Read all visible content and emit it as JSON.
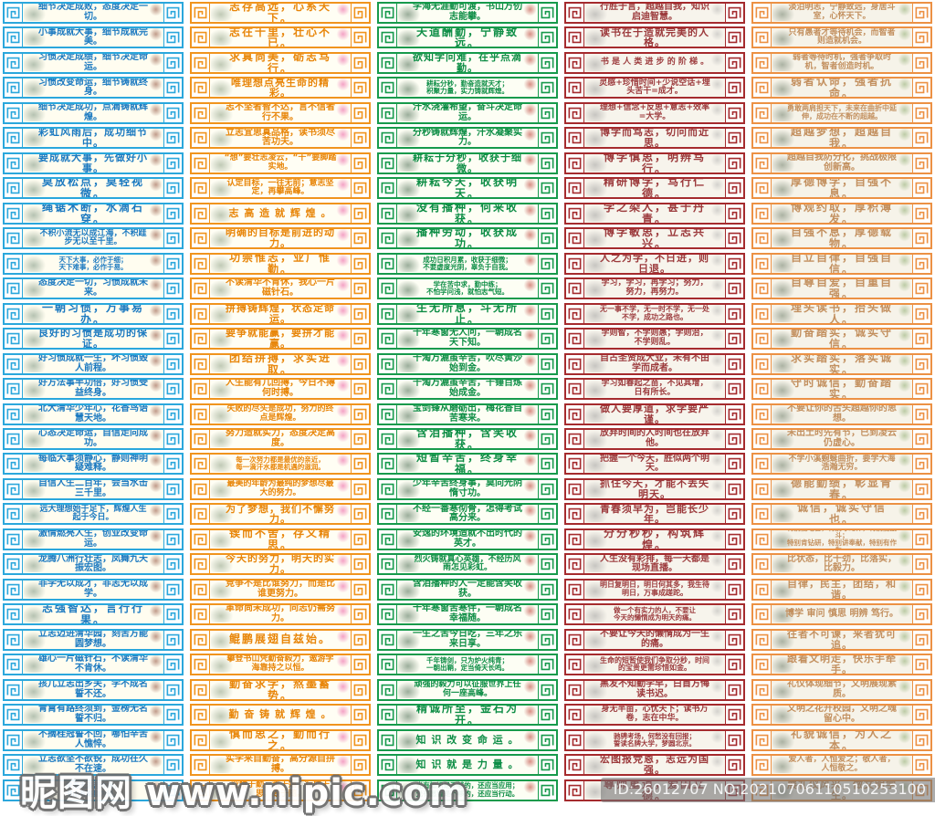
{
  "watermarks": {
    "site": "昵图网 www.nipic.com",
    "id_line": "ID:26012707 NO:20210706110510253100"
  },
  "columns": [
    {
      "id": "blue-detail-habit",
      "frame_color": "#2ba7dc",
      "text_color": "#1b79c0",
      "panel_bg": "#fffdf0",
      "art_left": "rgba(120,145,125,0.55)",
      "art_right": "rgba(150,90,70,0.6)",
      "strips": [
        "细节决定成败，态度决定一切。",
        "小事成就大事，细节成就完美。",
        "习惯决定成绩，细节决定命运。",
        "习惯改变命运，细节铸就终身。",
        "细节决定成功，点滴铸就辉煌。",
        "彩虹风雨后，成功细节中。",
        "要成就大事，先做好小事。",
        "莫放松点，莫轻视微。",
        "绳锯木断，水滴石穿。",
        "不积小流无以成江海，不积跬步无以至千里。",
        "天下大事，必作于细；\n天下难事，必作于易。",
        "态度决定一切，习惯成就未来。",
        "一朝习惯，万事易办。",
        "良好的习惯是成功的保证。",
        "好习惯成就一生，坏习惯毁人前程。",
        "好方法事半功倍，好习惯受益终身。",
        "北大清华少年心，花香鸟语慧天地。",
        "心态决定命运，自信走向成功。",
        "每临大事须静心，静则神明疑难释。",
        "自信人生二百年，会当水击三千里。",
        "远大理想始于足下，辉煌人生起于今日。",
        "激情燃亮人生，创业改变命运。",
        "龙腾八洲行壮志，凤舞九天振宏图。",
        "非学无以成才，非志无以成学。",
        "志强智达，言行行果。",
        "立志迈进清华园，刻苦方能圆梦想。",
        "雄心一片磁针石，不读清华不肯休。",
        "孩儿立志出乡关，学不成名誓不还。",
        "青霄有路终须到，金榜无名誓不归。",
        "不摘桂冠誓不回，哪怕辛苦人憔悴。",
        "立志欲坚不欲锐，成功在久不在速。",
        "学海无涯苦作舟，\n书山有路勤为径。"
      ]
    },
    {
      "id": "orange-ambition",
      "frame_color": "#f0941e",
      "text_color": "#e8860a",
      "panel_bg": "#fffef4",
      "art_left": "rgba(130,150,120,0.5)",
      "art_right": "rgba(242,146,189,0.85)",
      "strips": [
        "志存高远，心系天下。",
        "志在千里，壮心不已。",
        "求真尚美，砺志笃行。",
        "唯理想点亮生命的精彩。",
        "志不坚者智不达，言不信者行不果。",
        "立志宜思真品格，读书须尽苦功夫。",
        "“想”要壮志凌云，“干”要脚踏实地。",
        "认定目标，一往无前；意志坚定，再攀高峰。",
        "志 高 造 就 辉 煌 。",
        "明确的目标是前进的动力。",
        "功崇惟志，业广惟勤。",
        "不读清华不肯休，我心一片磁针石。",
        "拼搏铸辉煌，状态定命运。",
        "要争就能赢，要拼才能赢。",
        "团结拼搏，求实进取。",
        "人生能有几回搏，今日不搏何时搏。",
        "失败的尽头是成功，努力的终点是辉煌。",
        "努力造就实力，态度决定高度。",
        "每一次努力都是最优的亲近，\n每一滴汗水都是机遇的滋润。",
        "最美的年龄为最纯的梦想尽最大的努力。",
        "为了梦想，我们不懈努力。",
        "锲而不舍，存义精思。",
        "今天的努力，明天的实力。",
        "竞争不是比谁努力，而是比谁更努力。",
        "革命尚未成功，同志仍需努力。",
        "鲲鹏展翅自兹始。",
        "攀登书山凭勤奋毅力，遨游学海靠持之以恒。",
        "勤奋求学，熬墨蓄势。",
        "勤 奋 铸 就 辉 煌 。",
        "慎而思之，勤而行之。",
        "实学来自勤奋，高分源自拼搏。",
        "业精于勤，荒于嬉；行成于思，毁于随。"
      ]
    },
    {
      "id": "green-diligence",
      "frame_color": "#179a4c",
      "text_color": "#0d8d45",
      "panel_bg": "#fdfef4",
      "art_left": "rgba(90,120,95,0.6)",
      "art_right": "rgba(190,70,60,0.6)",
      "strips": [
        "学海无涯勤可渡，书山万仞志能攀。",
        "天道酬勤，宁静致远。",
        "欲知学问难，在乎点滴勤。",
        "耕耘分秒，勤奋造就天才；\n积聚力量，实力铸就辉煌。",
        "汗水浇灌希望，奋斗决定命运。",
        "分秒铸就辉煌，汗水凝聚实力。",
        "耕耘于分秒，收获于细微。",
        "耕耘今天，收获明天。",
        "没有播种，何来收获。",
        "播种劳动，收获成功。",
        "成功日积月累，收获于细微；\n不要虚度光阴，辜负于自我。",
        "学在苦中求，勤中练；\n不怕学问浅，就怕志气短。",
        "生无所息，斗无所止。",
        "十年寒窗无人问，一朝成名天下知。",
        "千淘万漉虽辛苦，吹尽黄沙始到金。",
        "千淘万漉虽辛苦，千锤百炼始成金。",
        "宝剑锋从磨砺出，梅花香自苦寒来。",
        "含泪播种，含笑收获。",
        "短暂辛苦，终身幸福。",
        "少年辛苦终身事，莫向光阴惰寸功。",
        "不经一番寒彻骨，怎得考试高分来。",
        "安逸的环境造就不出时代的英才。",
        "烈火铸就真心英雄，不经历风雨怎见彩虹。",
        "含泪播种的人一定能含笑收获。",
        "十年寒窗苦寒伴，一朝成名幸福随。",
        "一生之苦今日吃，三年之乐来日享。",
        "千年铸剑，只为炉火纯青；\n一朝出鞘，定当倚天长鸣。",
        "顽强的毅力可以征服世界上任何一座高峰。",
        "精诚所至，金石为开。",
        "知 识 改 变 命 运 。",
        "知 识 就 是 力 量 。",
        "光有知识是不够的，还应当应用；\n光有愿望是不够的，还应当行动。"
      ]
    },
    {
      "id": "red-study",
      "frame_color": "#a52b2e",
      "text_color": "#9c3a3c",
      "panel_bg": "#f7f4ec",
      "art_left": "rgba(140,140,140,0.45)",
      "art_right": "rgba(160,160,160,0.4)",
      "strips": [
        "行胜于言，超越自我，知识启迪智慧。",
        "读书在于造就完美的人格。",
        "书 是 人 类 进 步 的 阶 梯 。",
        "灵感+珍惜时间+少说空话+埋头苦干=成才。",
        "理想+信念+反思+意志+效率=大学。",
        "博学而笃志，切问而近思。",
        "博学慎思，明辨笃行。",
        "精研博学，笃行仁德。",
        "学之染人，甚于丹青。",
        "博学敏思，立志共兴。",
        "人之为学，不日进，则日退。",
        "学习，学习，再学习；努力，努力，再努力。",
        "无一事不学，无一时不学，无一处不学，成功之路也。",
        "学则智，不学则愚；学则治，不学则乱。",
        "自古圣贤成大业，未有不由学而成者。",
        "学习如春起之苗，不见其增，日有所长。",
        "做人要厚道，求学要严谨。",
        "放弃时间的人时间也在放弃他。",
        "把握一个今天，胜似两个明天。",
        "抓住今天，才能不丢失明天。",
        "青春须早为，岂能长少年。",
        "分分秒秒，构筑辉煌。",
        "人生没有彩排，每一天都是现场直播。",
        "明日复明日，明日何其多，我生待明日，万事成蹉跎。",
        "做一个有实力的人，不要让\n今天的懒惰成为明天的痛。",
        "不要让今天的懒惰成为一生的痛。",
        "生命的短暂使我们争取分秒，时间的宝贵更需珍惜如金。",
        "黑发不知勤学早，白首方悔读书迟。",
        "身无半亩，心忧天下；读书万卷，志在中华。",
        "驰骋考场，何愁没有回报；\n誓读名牌大学，梦圆北京。",
        "宏图报党恩，志远为国强。",
        "尊师重道，爱国立德。"
      ]
    },
    {
      "id": "tan-conduct",
      "frame_color": "#ec9144",
      "text_color": "#c3905f",
      "panel_bg": "#f6f3e9",
      "art_left": "rgba(110,125,105,0.55)",
      "art_right": "rgba(140,170,110,0.55)",
      "strips": [
        "淡泊明志，宁静致远，身居斗室，心怀天下。",
        "只有愚者才等待机会，而智者则造就机会。",
        "弱者等待时机，强者争取时机，智者创造时机。",
        "弱者认命，强者抗命。",
        "勇敢两肩担天下，未来在曲折中延伸，成功在不断的超越。",
        "超越梦想，超越自我。",
        "超越自我防分化，挑战极限创新高。",
        "厚德博学，自强不息。",
        "博观约取，厚积薄发。",
        "自强不息，厚德载物。",
        "自立自律，自强自信。",
        "自尊自爱，自重自强。",
        "埋头读书，抬头做人。",
        "勤奋踏实，诚实守信。",
        "求实踏实，落实诚实。",
        "守时诚信，勤奋踏实。",
        "不要让你的舌头超越你的思想。",
        "未出土时先有节，已到凌云仍虚心。",
        "不学小溪蜿蜒曲折，要学大海浩瀚无穷。",
        "德能勤绩，彰显青春。",
        "诚信，诚实守信也。",
        "特别能吃苦，特别守纪律，特别能战斗；\n特别肯钻研，特别讲奉献，特别有作为。",
        "比状态，比干劲，比落实，比毅力。",
        "自律，民主，团结，和谐。",
        "博学 审问 慎思 明辨 笃行。",
        "往者不可谏，来者犹可追。",
        "跟着文明走，快乐手牵手。",
        "礼仪体现细节，文明展现素质。",
        "文明之花开校园，文明之魂留心中。",
        "礼貌诚信，为人之本。",
        "爱人者，人恒爱之；敬人者，人恒敬之。",
        "展礼仪风采，做文明学生。"
      ]
    }
  ]
}
